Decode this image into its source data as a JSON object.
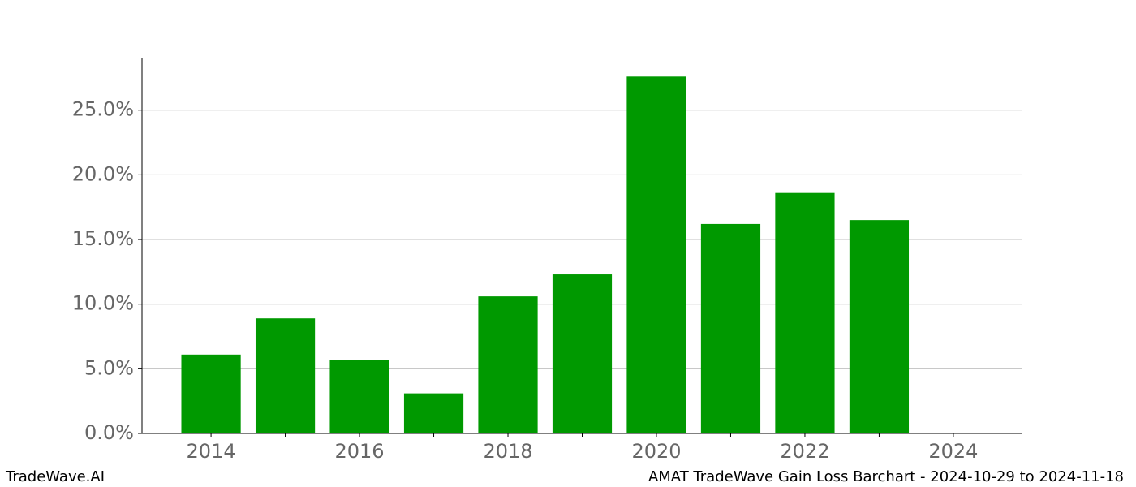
{
  "chart_data": {
    "type": "bar",
    "title": "AMAT TradeWave Gain Loss Barchart - 2024-10-29 to 2024-11-18",
    "watermark": "TradeWave.AI",
    "x": [
      2014,
      2015,
      2016,
      2017,
      2018,
      2019,
      2020,
      2021,
      2022,
      2023
    ],
    "values": [
      6.1,
      8.9,
      5.7,
      3.1,
      10.6,
      12.3,
      27.6,
      16.2,
      18.6,
      16.5
    ],
    "color": "#009900",
    "xlim": [
      2013.07,
      2024.93
    ],
    "xticks": [
      2014,
      2016,
      2018,
      2020,
      2022,
      2024
    ],
    "xminorticks": [
      2015,
      2017,
      2019,
      2021,
      2023
    ],
    "ylim": [
      0,
      29
    ],
    "yticks": [
      {
        "value": 0,
        "label": "0.0%"
      },
      {
        "value": 5,
        "label": "5.0%"
      },
      {
        "value": 10,
        "label": "10.0%"
      },
      {
        "value": 15,
        "label": "15.0%"
      },
      {
        "value": 20,
        "label": "20.0%"
      },
      {
        "value": 25,
        "label": "25.0%"
      }
    ],
    "grid": true
  }
}
